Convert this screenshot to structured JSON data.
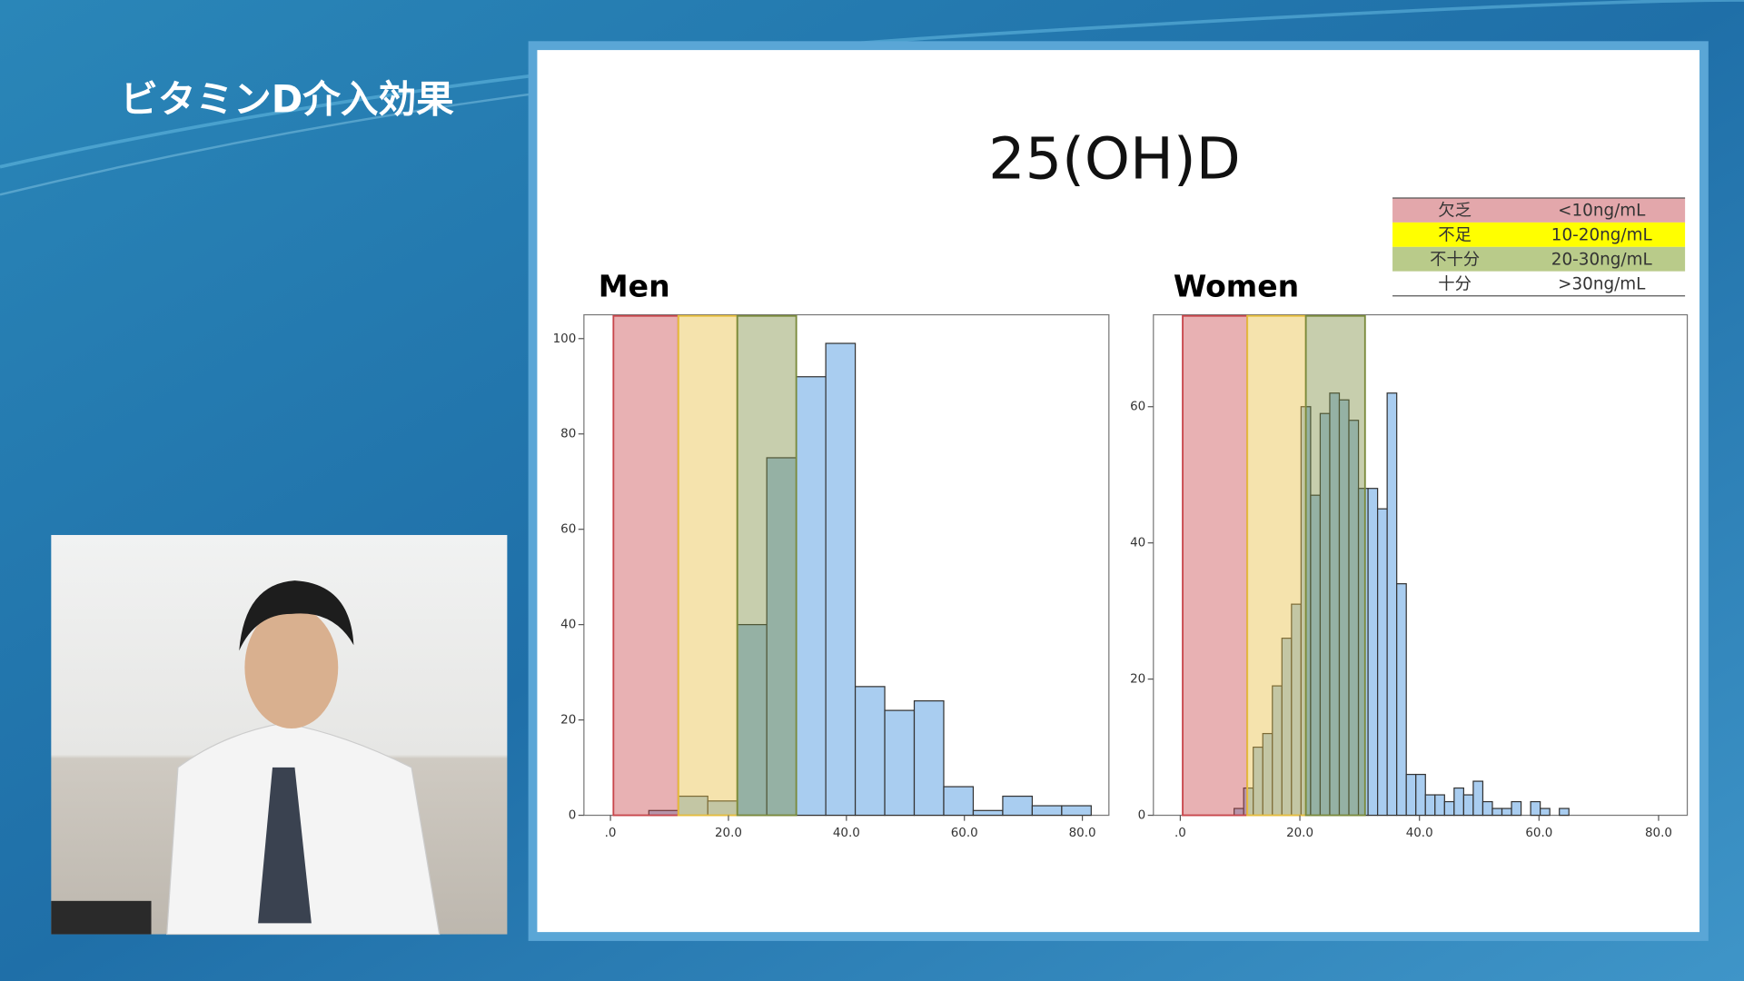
{
  "header": {
    "title": "ビタミンD介入効果"
  },
  "slide": {
    "title": "25(OH)D",
    "legend_table": [
      {
        "term": "欠乏",
        "range": "<10ng/mL",
        "color": "#e3a7ab"
      },
      {
        "term": "不足",
        "range": "10-20ng/mL",
        "color": "#ffff00"
      },
      {
        "term": "不十分",
        "range": "20-30ng/mL",
        "color": "#b9cb8a"
      },
      {
        "term": "十分",
        "range": ">30ng/mL",
        "color": "#ffffff"
      }
    ]
  },
  "chart_data": [
    {
      "type": "histogram",
      "title": "Men",
      "color": "#a9cdf0",
      "bins": [
        6.5,
        11.5,
        16.5,
        21.5,
        26.5,
        31.5,
        36.5,
        41.5,
        46.5,
        51.5,
        56.5,
        61.5,
        66.5,
        71.5,
        76.5,
        81.5
      ],
      "values": [
        1,
        4,
        3,
        40,
        75,
        92,
        99,
        27,
        22,
        24,
        6,
        1,
        4,
        2,
        2
      ],
      "xlim": [
        -4.5,
        84.5
      ],
      "ylim": [
        0,
        105
      ],
      "xticks": [
        {
          "value": 0,
          "label": ".0"
        },
        {
          "value": 20,
          "label": "20.0"
        },
        {
          "value": 40,
          "label": "40.0"
        },
        {
          "value": 60,
          "label": "60.0"
        },
        {
          "value": 80,
          "label": "80.0"
        }
      ],
      "yticks": [
        0,
        20,
        40,
        60,
        80,
        100
      ],
      "bands": [
        {
          "from": 0.5,
          "to": 11.5,
          "color": "#c8464b"
        },
        {
          "from": 11.5,
          "to": 21.5,
          "color": "#e6bd3c"
        },
        {
          "from": 21.5,
          "to": 31.5,
          "color": "#7a8a3c"
        }
      ]
    },
    {
      "type": "histogram",
      "title": "Women",
      "color": "#a9cdf0",
      "bins": [
        9.0,
        10.6,
        12.2,
        13.8,
        15.4,
        17.0,
        18.6,
        20.2,
        21.8,
        23.4,
        25.0,
        26.6,
        28.2,
        29.8,
        31.4,
        33.0,
        34.6,
        36.2,
        37.8,
        39.4,
        41.0,
        42.6,
        44.2,
        45.8,
        47.4,
        49.0,
        50.6,
        52.2,
        53.8,
        55.4,
        57.0,
        58.6,
        60.2,
        61.8,
        63.4,
        65.0
      ],
      "values": [
        1,
        4,
        10,
        12,
        19,
        26,
        31,
        60,
        47,
        59,
        62,
        61,
        58,
        48,
        48,
        45,
        62,
        34,
        6,
        6,
        3,
        3,
        2,
        4,
        3,
        5,
        2,
        1,
        1,
        2,
        0,
        2,
        1,
        0,
        1
      ],
      "xlim": [
        -4.5,
        84.8
      ],
      "ylim": [
        0,
        73.5
      ],
      "xticks": [
        {
          "value": 0,
          "label": ".0"
        },
        {
          "value": 20,
          "label": "20.0"
        },
        {
          "value": 40,
          "label": "40.0"
        },
        {
          "value": 60,
          "label": "60.0"
        },
        {
          "value": 80,
          "label": "80.0"
        }
      ],
      "yticks": [
        0,
        20,
        40,
        60
      ],
      "bands": [
        {
          "from": 0.4,
          "to": 11.2,
          "color": "#c8464b"
        },
        {
          "from": 11.2,
          "to": 21.0,
          "color": "#e6bd3c"
        },
        {
          "from": 21.0,
          "to": 30.9,
          "color": "#7a8a3c"
        }
      ]
    }
  ]
}
